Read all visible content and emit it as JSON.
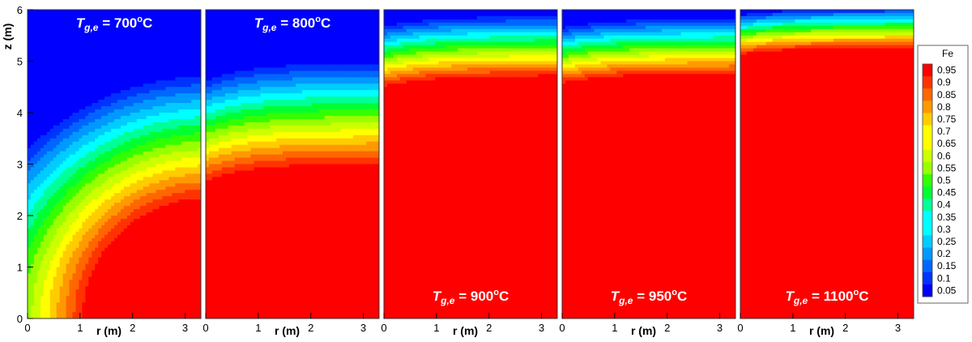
{
  "chart_data": {
    "type": "heatmap",
    "variable": "Fe",
    "xlabel": "r (m)",
    "ylabel": "z (m)",
    "xlim": [
      0,
      3.3
    ],
    "ylim": [
      0,
      6
    ],
    "x_ticks": [
      0,
      1,
      2,
      3
    ],
    "y_ticks": [
      0,
      1,
      2,
      3,
      4,
      5,
      6
    ],
    "colorscale": [
      "#0000ff",
      "#0033ff",
      "#0066ff",
      "#0099ff",
      "#00ccff",
      "#00ffff",
      "#00ff99",
      "#00ff33",
      "#33ff00",
      "#99ff00",
      "#ccff00",
      "#ffff00",
      "#ffcc00",
      "#ff9900",
      "#ff6600",
      "#ff3300",
      "#ff0000"
    ],
    "legend": {
      "title": "Fe",
      "levels": [
        "0.95",
        "0.9",
        "0.85",
        "0.8",
        "0.75",
        "0.7",
        "0.65",
        "0.6",
        "0.55",
        "0.5",
        "0.45",
        "0.4",
        "0.35",
        "0.3",
        "0.25",
        "0.2",
        "0.15",
        "0.1",
        "0.05"
      ]
    },
    "panels": [
      {
        "title_main": "T",
        "title_sub": "g,e",
        "title_value": " = 700",
        "title_sup": "o",
        "title_unit": "C",
        "title_position": "top",
        "front_kind": "radial",
        "front_radius_center": 3.7,
        "front_width": 2.8
      },
      {
        "title_main": "T",
        "title_sub": "g,e",
        "title_value": " = 800",
        "title_sup": "o",
        "title_unit": "C",
        "title_position": "top",
        "front_kind": "flat",
        "front_z_center": 4.0,
        "front_width": 2.2
      },
      {
        "title_main": "T",
        "title_sub": "g,e",
        "title_value": " = 900",
        "title_sup": "o",
        "title_unit": "C",
        "title_position": "bottom",
        "front_kind": "flat",
        "front_z_center": 5.3,
        "front_width": 1.3
      },
      {
        "title_main": "T",
        "title_sub": "g,e",
        "title_value": " = 950",
        "title_sup": "o",
        "title_unit": "C",
        "title_position": "bottom",
        "front_kind": "flat",
        "front_z_center": 5.3,
        "front_width": 1.2
      },
      {
        "title_main": "T",
        "title_sub": "g,e",
        "title_value": " = 1100",
        "title_sup": "o",
        "title_unit": "C",
        "title_position": "bottom",
        "front_kind": "flat",
        "front_z_center": 5.65,
        "front_width": 0.85
      }
    ]
  }
}
